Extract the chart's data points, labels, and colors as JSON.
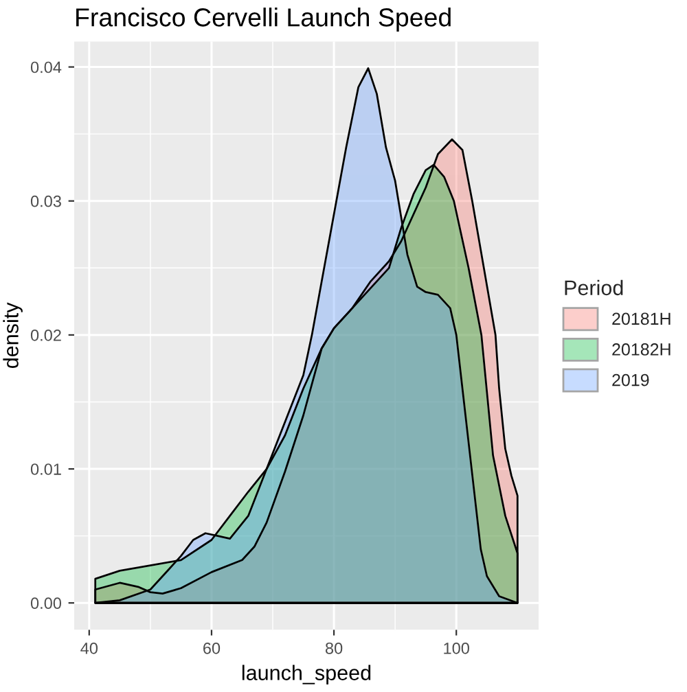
{
  "chart_data": {
    "type": "area",
    "title": "Francisco Cervelli Launch Speed",
    "xlabel": "launch_speed",
    "ylabel": "density",
    "legend_title": "Period",
    "legend": "right",
    "grid": true,
    "xlim": [
      37.55,
      113.45
    ],
    "xticks": [
      40,
      60,
      80,
      100
    ],
    "ylim": [
      -0.002,
      0.0419
    ],
    "yticks": [
      {
        "value": 0,
        "label": "0.00"
      },
      0.01,
      0.02,
      0.03,
      0.04
    ],
    "series": [
      {
        "name": "20181H",
        "color": "#f8766d",
        "x": [
          41,
          45,
          48,
          50,
          52,
          55,
          60,
          65,
          67,
          69,
          72,
          75,
          78,
          80,
          83,
          86,
          89,
          91,
          93,
          95,
          97,
          99.3,
          101,
          102.6,
          104.5,
          106.4,
          107,
          108,
          109,
          110
        ],
        "values": [
          0.001,
          0.0015,
          0.0012,
          0.0008,
          0.0007,
          0.0011,
          0.0023,
          0.0032,
          0.0042,
          0.006,
          0.0098,
          0.014,
          0.019,
          0.0205,
          0.022,
          0.024,
          0.0255,
          0.027,
          0.029,
          0.031,
          0.0335,
          0.0346,
          0.0338,
          0.03,
          0.025,
          0.02,
          0.016,
          0.0115,
          0.0095,
          0.008
        ]
      },
      {
        "name": "20182H",
        "color": "#00ba38",
        "x": [
          41,
          45,
          50,
          55,
          60,
          63,
          66,
          69,
          72,
          75,
          78,
          80,
          83,
          86,
          89,
          91,
          93,
          95,
          96.3,
          98,
          99.6,
          102,
          104.1,
          106,
          108,
          110
        ],
        "values": [
          0.0018,
          0.0024,
          0.0028,
          0.0032,
          0.0047,
          0.0065,
          0.0083,
          0.01,
          0.0125,
          0.016,
          0.019,
          0.0205,
          0.022,
          0.0235,
          0.025,
          0.028,
          0.0305,
          0.0323,
          0.0327,
          0.0318,
          0.03,
          0.025,
          0.02,
          0.011,
          0.0065,
          0.0037
        ]
      },
      {
        "name": "2019",
        "color": "#619cff",
        "x": [
          41,
          45,
          50,
          53,
          55,
          57,
          59,
          61,
          63,
          66,
          69,
          72,
          75,
          76.4,
          78,
          80,
          82,
          84,
          85.6,
          87,
          88.5,
          90,
          92,
          93.6,
          95,
          97,
          99,
          100,
          101,
          102,
          103,
          104,
          105,
          107,
          110
        ],
        "values": [
          0.0,
          0.0002,
          0.001,
          0.0025,
          0.0035,
          0.0047,
          0.0052,
          0.005,
          0.0048,
          0.0065,
          0.01,
          0.0135,
          0.017,
          0.02,
          0.024,
          0.029,
          0.034,
          0.0385,
          0.0399,
          0.038,
          0.034,
          0.0315,
          0.026,
          0.0236,
          0.0232,
          0.023,
          0.022,
          0.02,
          0.016,
          0.012,
          0.008,
          0.004,
          0.002,
          0.0005,
          0.0
        ]
      }
    ]
  }
}
